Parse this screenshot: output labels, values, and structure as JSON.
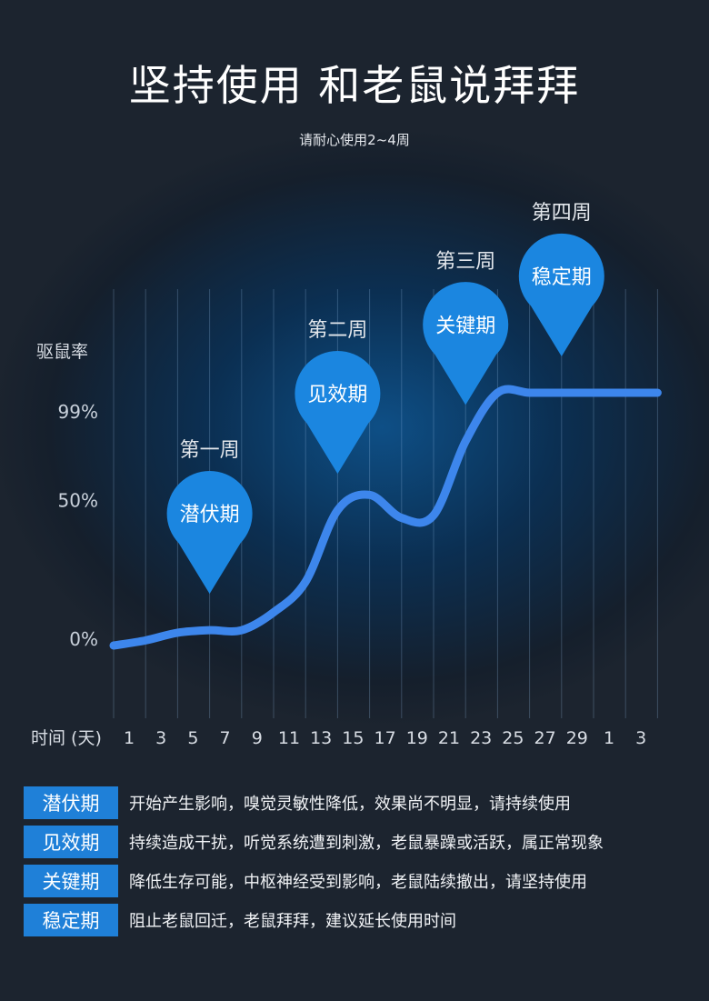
{
  "title": "坚持使用 和老鼠说拜拜",
  "subtitle": "请耐心使用2~4周",
  "chart_data": {
    "type": "line",
    "ylabel": "驱鼠率",
    "xlabel": "时间 (天)",
    "y_ticks": [
      "99%",
      "50%",
      "0%"
    ],
    "x_ticks": [
      "1",
      "3",
      "5",
      "7",
      "9",
      "11",
      "13",
      "15",
      "17",
      "19",
      "21",
      "23",
      "25",
      "27",
      "29",
      "1",
      "3"
    ],
    "series": [
      {
        "values": [
          0,
          2,
          5,
          6,
          6,
          13,
          25,
          53,
          59,
          50,
          51,
          80,
          99,
          99,
          99,
          99,
          99,
          99
        ]
      }
    ],
    "ylim": [
      0,
      100
    ],
    "grid": true,
    "annotations": [
      {
        "week": "第一周",
        "label": "潜伏期",
        "x_index": 3
      },
      {
        "week": "第二周",
        "label": "见效期",
        "x_index": 7
      },
      {
        "week": "第三周",
        "label": "关键期",
        "x_index": 11
      },
      {
        "week": "第四周",
        "label": "稳定期",
        "x_index": 14
      }
    ],
    "colors": {
      "line": "#3d86ec",
      "marker": "#1b86e0"
    }
  },
  "legend": [
    {
      "tag": "潜伏期",
      "desc": "开始产生影响，嗅觉灵敏性降低，效果尚不明显，请持续使用"
    },
    {
      "tag": "见效期",
      "desc": "持续造成干扰，听觉系统遭到刺激，老鼠暴躁或活跃，属正常现象"
    },
    {
      "tag": "关键期",
      "desc": "降低生存可能，中枢神经受到影响，老鼠陆续撤出，请坚持使用"
    },
    {
      "tag": "稳定期",
      "desc": "阻止老鼠回迁，老鼠拜拜，建议延长使用时间"
    }
  ]
}
